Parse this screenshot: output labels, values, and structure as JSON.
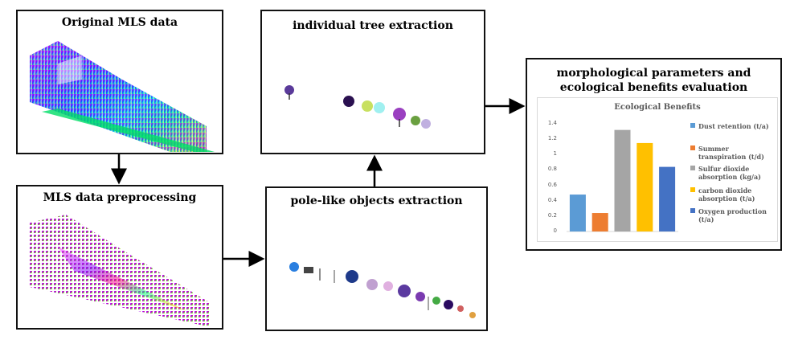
{
  "diagram": {
    "nodes": {
      "original": {
        "label": "Original MLS data"
      },
      "preprocessing": {
        "label": "MLS data preprocessing"
      },
      "pole": {
        "label": "pole-like objects extraction"
      },
      "tree": {
        "label": "individual tree extraction"
      },
      "eval": {
        "label": "morphological parameters and ecological benefits evaluation"
      }
    },
    "edges": [
      {
        "from": "original",
        "to": "preprocessing"
      },
      {
        "from": "preprocessing",
        "to": "pole"
      },
      {
        "from": "pole",
        "to": "tree"
      },
      {
        "from": "tree",
        "to": "eval"
      }
    ]
  },
  "chart_data": {
    "type": "bar",
    "title": "Ecological Benefits",
    "categories": [
      "Dust retention (t/a)",
      "Summer transpiration (t/d)",
      "Sulfur dioxide absorption (kg/a)",
      "carbon dioxide absorption (t/a)",
      "Oxygen production (t/a)"
    ],
    "values": [
      0.48,
      0.24,
      1.32,
      1.15,
      0.84
    ],
    "colors": [
      "#5b9bd5",
      "#ed7d31",
      "#a5a5a5",
      "#ffc000",
      "#4472c4"
    ],
    "ylim": [
      0,
      1.4
    ],
    "yticks": [
      "0",
      "0.2",
      "0.4",
      "0.6",
      "0.8",
      "1",
      "1.2",
      "1.4"
    ],
    "legend_position": "right",
    "grid": false
  }
}
